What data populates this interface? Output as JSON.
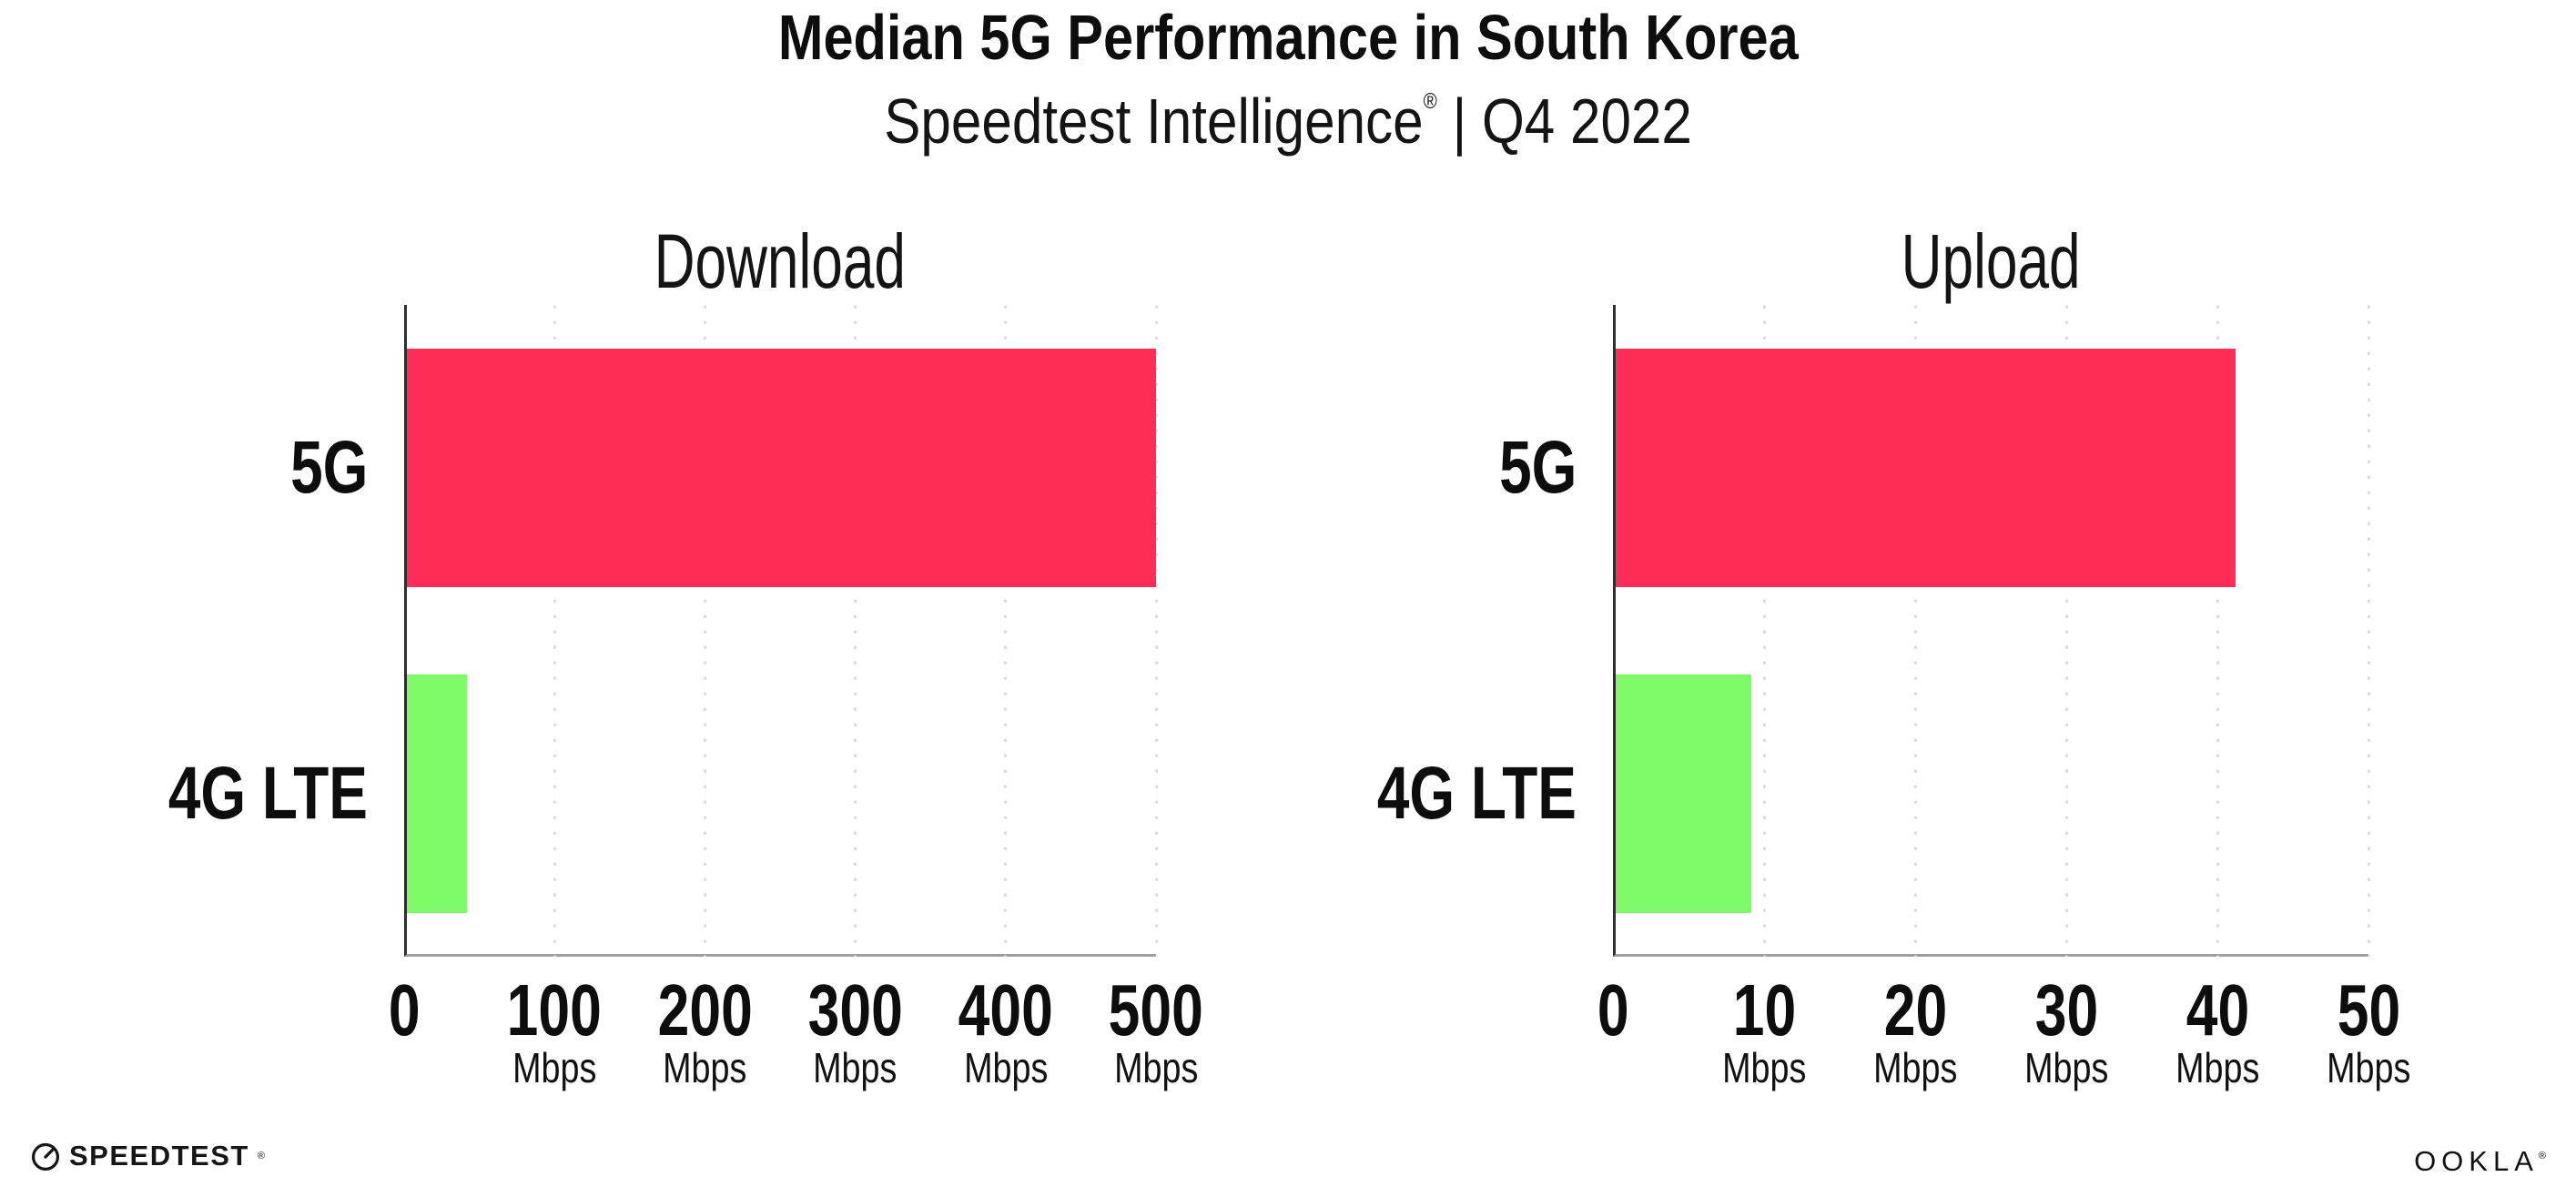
{
  "header": {
    "title": "Median 5G Performance in South Korea",
    "subtitle_brand": "Speedtest Intelligence",
    "subtitle_reg": "®",
    "subtitle_rest": " | Q4 2022"
  },
  "colors": {
    "bar_5g": "#FD2D57",
    "bar_4g_lte": "#7FFB69",
    "gridline": "#D9D9E4",
    "y_axis": "#2E2E2E",
    "x_axis": "#9E9E9E",
    "text": "#111111"
  },
  "chart_data": [
    {
      "type": "bar",
      "orientation": "horizontal",
      "title": "Download",
      "categories": [
        "5G",
        "4G LTE"
      ],
      "values": [
        498,
        40
      ],
      "unit": "Mbps",
      "xlim": [
        0,
        500
      ],
      "xticks": [
        0,
        100,
        200,
        300,
        400,
        500
      ],
      "tick_unit_label": "Mbps",
      "bar_colors": [
        "#FD2D57",
        "#7FFB69"
      ],
      "grid": "dotted vertical gridlines, unit labels under every tick except 0"
    },
    {
      "type": "bar",
      "orientation": "horizontal",
      "title": "Upload",
      "categories": [
        "5G",
        "4G LTE"
      ],
      "values": [
        41,
        9
      ],
      "unit": "Mbps",
      "xlim": [
        0,
        50
      ],
      "xticks": [
        0,
        10,
        20,
        30,
        40,
        50
      ],
      "tick_unit_label": "Mbps",
      "bar_colors": [
        "#FD2D57",
        "#7FFB69"
      ],
      "grid": "dotted vertical gridlines, unit labels under every tick except 0"
    }
  ],
  "footer": {
    "speedtest_label": "SPEEDTEST",
    "speedtest_reg": "®",
    "ookla_label": "OOKLA",
    "ookla_reg": "®"
  }
}
